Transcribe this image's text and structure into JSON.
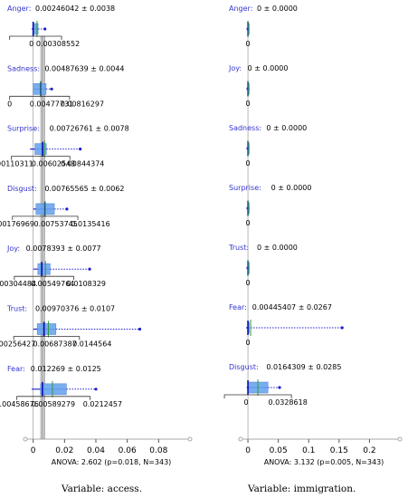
{
  "chart_data": [
    {
      "type": "boxplot",
      "caption": "Variable: access.",
      "footer": "ANOVA: 2.602 (p=0.018, N=343)",
      "x_ticks": [
        "0",
        "0.02",
        "0.04",
        "0.06",
        "0.08"
      ],
      "xlim": [
        -0.005,
        0.1
      ],
      "series": [
        {
          "name": "Anger",
          "stat": "0.00246042 ± 0.0038",
          "labels": [
            "0",
            "0.00308552"
          ],
          "values": {
            "min": -0.001,
            "q1": 0.0,
            "median": 0.0,
            "q3": 0.0031,
            "max": 0.0075,
            "mean": 0.00246042
          }
        },
        {
          "name": "Sadness",
          "stat": "0.00487639 ± 0.0044",
          "labels": [
            "0",
            "0.00477731",
            "0.00816297"
          ],
          "values": {
            "min": 0.0,
            "q1": 0.0,
            "median": 0.0048,
            "q3": 0.0082,
            "max": 0.0118,
            "mean": 0.00487639
          }
        },
        {
          "name": "Surprise",
          "stat": "0.00726761 ± 0.0078",
          "labels": [
            "0.00110311",
            "0.00602543",
            "0.00844374"
          ],
          "values": {
            "min": -0.002,
            "q1": 0.0011,
            "median": 0.006,
            "q3": 0.0084,
            "max": 0.03,
            "mean": 0.00726761
          }
        },
        {
          "name": "Disgust",
          "stat": "0.00765565 ± 0.0062",
          "labels": [
            "0.00176969",
            "0.00753745",
            "0.0135416"
          ],
          "values": {
            "min": 0.0,
            "q1": 0.0018,
            "median": 0.0075,
            "q3": 0.0135,
            "max": 0.0215,
            "mean": 0.00765565
          }
        },
        {
          "name": "Joy",
          "stat": "0.0078393 ± 0.0077",
          "labels": [
            "0.00304484",
            "0.00549764",
            "0.0108329"
          ],
          "values": {
            "min": 0.0,
            "q1": 0.003,
            "median": 0.0055,
            "q3": 0.0108,
            "max": 0.036,
            "mean": 0.0078393
          }
        },
        {
          "name": "Trust",
          "stat": "0.00970376 ± 0.0107",
          "labels": [
            "0.00256427",
            "0.00687387",
            "0.0144564"
          ],
          "values": {
            "min": 0.0,
            "q1": 0.0026,
            "median": 0.0069,
            "q3": 0.0145,
            "max": 0.068,
            "mean": 0.00970376
          }
        },
        {
          "name": "Fear",
          "stat": "0.012269 ± 0.0125",
          "labels": [
            "0.00458676",
            "0.00589279",
            "0.0212457"
          ],
          "values": {
            "min": -0.001,
            "q1": 0.0046,
            "median": 0.0059,
            "q3": 0.0212,
            "max": 0.04,
            "mean": 0.012269
          }
        }
      ]
    },
    {
      "type": "boxplot",
      "caption": "Variable: immigration.",
      "footer": "ANOVA: 3.132 (p=0.005, N=343)",
      "x_ticks": [
        "0",
        "0.05",
        "0.1",
        "0.15",
        "0.2"
      ],
      "xlim": [
        -0.012,
        0.25
      ],
      "series": [
        {
          "name": "Anger",
          "stat": "0 ± 0.0000",
          "labels": [
            "0"
          ],
          "values": {
            "min": 0,
            "q1": 0,
            "median": 0,
            "q3": 0,
            "max": 0,
            "mean": 0
          }
        },
        {
          "name": "Joy",
          "stat": "0 ± 0.0000",
          "labels": [
            "0"
          ],
          "values": {
            "min": 0,
            "q1": 0,
            "median": 0,
            "q3": 0,
            "max": 0,
            "mean": 0
          }
        },
        {
          "name": "Sadness",
          "stat": "0 ± 0.0000",
          "labels": [
            "0"
          ],
          "values": {
            "min": 0,
            "q1": 0,
            "median": 0,
            "q3": 0,
            "max": 0,
            "mean": 0
          }
        },
        {
          "name": "Surprise",
          "stat": "0 ± 0.0000",
          "labels": [
            "0"
          ],
          "values": {
            "min": 0,
            "q1": 0,
            "median": 0,
            "q3": 0,
            "max": 0,
            "mean": 0
          }
        },
        {
          "name": "Trust",
          "stat": "0 ± 0.0000",
          "labels": [
            "0"
          ],
          "values": {
            "min": 0,
            "q1": 0,
            "median": 0,
            "q3": 0,
            "max": 0,
            "mean": 0
          }
        },
        {
          "name": "Fear",
          "stat": "0.00445407 ± 0.0267",
          "labels": [
            "0"
          ],
          "values": {
            "min": -0.003,
            "q1": 0,
            "median": 0,
            "q3": 0,
            "max": 0.155,
            "mean": 0.00445407
          }
        },
        {
          "name": "Disgust",
          "stat": "0.0164309 ± 0.0285",
          "labels": [
            "0",
            "0.0328618"
          ],
          "values": {
            "min": -0.002,
            "q1": 0,
            "median": 0,
            "q3": 0.0329,
            "max": 0.052,
            "mean": 0.0164309
          }
        }
      ]
    }
  ]
}
